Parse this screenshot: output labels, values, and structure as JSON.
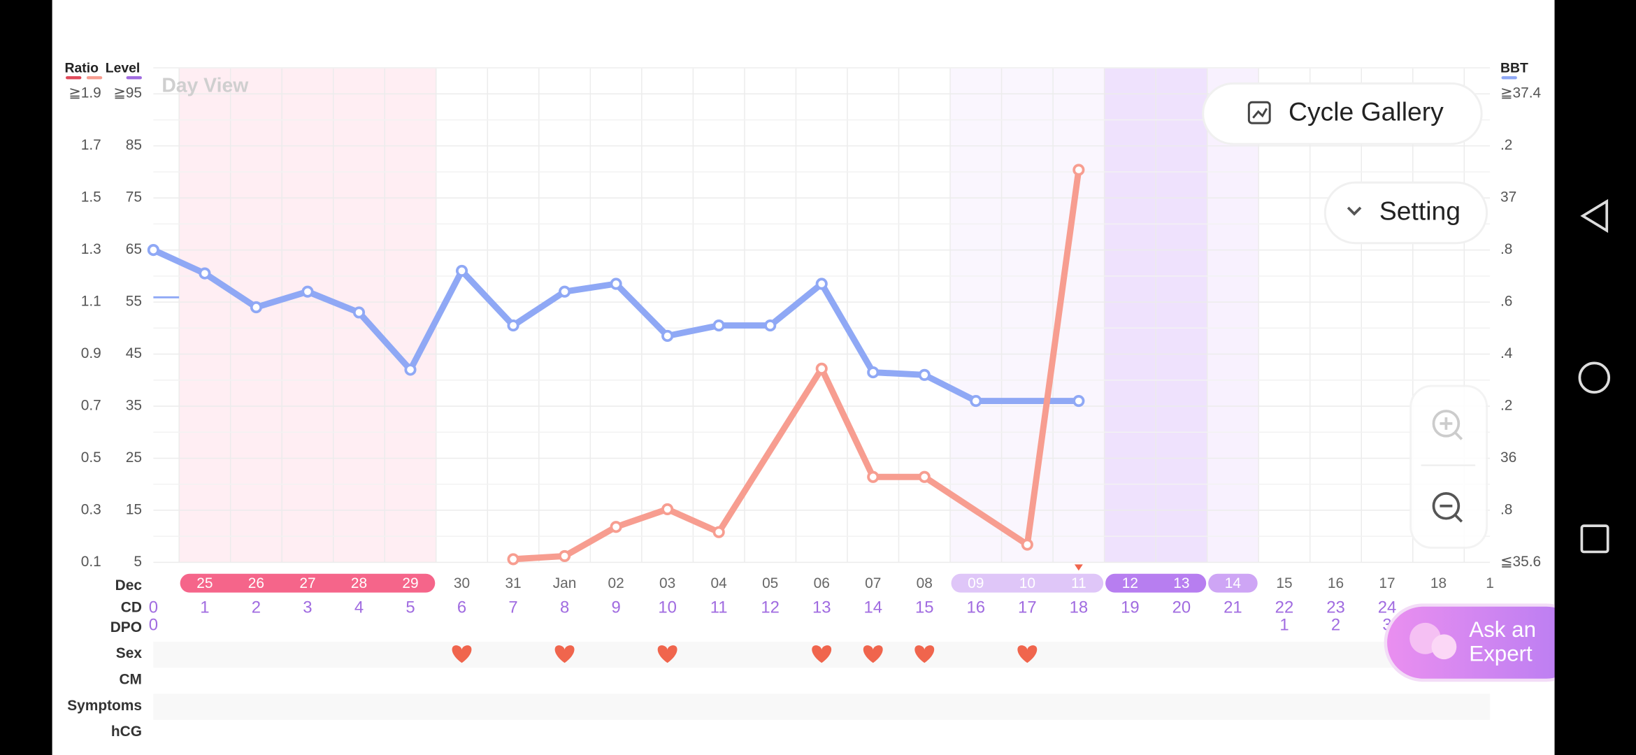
{
  "chart_data": {
    "type": "line",
    "title": "Day View",
    "ratio_axis": {
      "title": "Ratio",
      "lim": [
        0.1,
        2.0
      ],
      "ticks": [
        {
          "value": 1.9,
          "label": "≧1.9"
        },
        1.7,
        1.5,
        1.3,
        1.1,
        0.9,
        0.7,
        0.5,
        0.3,
        0.1
      ]
    },
    "ylim": [
      5,
      100
    ],
    "yticks": [
      {
        "value": 95,
        "label": "≧95"
      },
      85,
      75,
      65,
      55,
      45,
      35,
      25,
      15,
      5
    ],
    "y2lim": [
      35.6,
      37.5
    ],
    "y2ticks": [
      {
        "value": 37.4,
        "label": "≧37.4"
      },
      {
        "value": 37.2,
        "label": ".2"
      },
      37,
      {
        "value": 36.8,
        "label": ".8"
      },
      {
        "value": 36.6,
        "label": ".6"
      },
      {
        "value": 36.4,
        "label": ".4"
      },
      {
        "value": 36.2,
        "label": ".2"
      },
      36,
      {
        "value": 35.8,
        "label": ".8"
      },
      {
        "value": 35.6,
        "label": "≦35.6"
      }
    ],
    "xlim": [
      0,
      26
    ],
    "grid": true,
    "series": [
      {
        "name": "BBT",
        "color": "#8fa8f5",
        "axis": "y2",
        "x": [
          0,
          1,
          2,
          3,
          4,
          5,
          6,
          7,
          8,
          9,
          10,
          11,
          12,
          13,
          14,
          15,
          16,
          18
        ],
        "values": [
          36.8,
          36.71,
          36.58,
          36.64,
          36.56,
          36.34,
          36.72,
          36.51,
          36.64,
          36.67,
          36.47,
          36.51,
          36.51,
          36.67,
          36.33,
          36.32,
          36.22,
          36.22
        ]
      },
      {
        "name": "Level",
        "color": "#f79d90",
        "x": [
          7,
          8,
          9,
          10,
          11,
          13,
          14,
          15,
          17,
          18
        ],
        "values": [
          5.6,
          6.2,
          11.8,
          15.2,
          10.8,
          42.2,
          21.4,
          21.4,
          8.4,
          80.4
        ]
      }
    ],
    "phases": [
      {
        "from": 1,
        "to": 5,
        "band": "#ffeef3",
        "pill": "#f5658a"
      },
      {
        "from": 16,
        "to": 18,
        "band": "#faf6fe",
        "pill": "#dfc6f8"
      },
      {
        "from": 19,
        "to": 20,
        "band": "#efe2fd",
        "pill": "#b77ef0"
      },
      {
        "from": 21,
        "to": 21,
        "band": "#f8f1fe",
        "pill": "#cea5f5"
      }
    ],
    "date_row": {
      "label": "Dec",
      "dates": [
        null,
        "25",
        "26",
        "27",
        "28",
        "29",
        "30",
        "31",
        "Jan",
        "02",
        "03",
        "04",
        "05",
        "06",
        "07",
        "08",
        "09",
        "10",
        "11",
        "12",
        "13",
        "14",
        "15",
        "16",
        "17",
        "18",
        "1"
      ]
    },
    "cd_row": {
      "label": "CD",
      "values": [
        0,
        1,
        2,
        3,
        4,
        5,
        6,
        7,
        8,
        9,
        10,
        11,
        12,
        13,
        14,
        15,
        16,
        17,
        18,
        19,
        20,
        21,
        22,
        23,
        24
      ]
    },
    "dpo_row": {
      "label": "DPO",
      "values": [
        0,
        null,
        null,
        null,
        null,
        null,
        null,
        null,
        null,
        null,
        null,
        null,
        null,
        null,
        null,
        null,
        null,
        null,
        null,
        null,
        null,
        null,
        1,
        2,
        3
      ]
    },
    "sex_row": {
      "label": "Sex",
      "days": [
        6,
        8,
        10,
        13,
        14,
        15,
        17
      ],
      "color": "#f0654d"
    },
    "other_rows": [
      "CM",
      "Symptoms",
      "hCG"
    ]
  },
  "buttons": {
    "cycle_gallery": "Cycle Gallery",
    "setting": "Setting",
    "ask_expert": [
      "Ask an",
      "Expert"
    ]
  }
}
